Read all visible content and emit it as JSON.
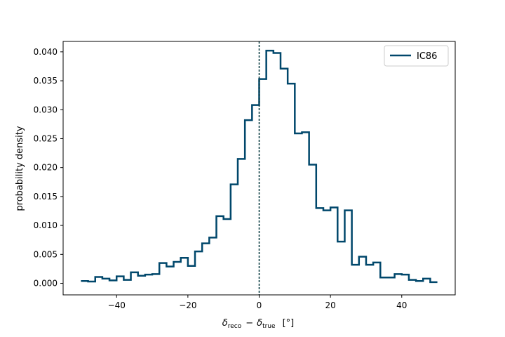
{
  "chart_data": {
    "type": "line",
    "style": "step-histogram",
    "xlabel": "δ_reco − δ_true",
    "xlabel_parts": {
      "symbol": "δ",
      "sub1": "reco",
      "minus": "−",
      "sub2": "true",
      "unit": "[°]"
    },
    "ylabel": "probability density",
    "xlim": [
      -55,
      55
    ],
    "ylim": [
      -0.002,
      0.0418
    ],
    "xticks": [
      -40,
      -20,
      0,
      20,
      40
    ],
    "xtick_labels": [
      "−40",
      "−20",
      "0",
      "20",
      "40"
    ],
    "yticks": [
      0.0,
      0.005,
      0.01,
      0.015,
      0.02,
      0.025,
      0.03,
      0.035,
      0.04
    ],
    "ytick_labels": [
      "0.000",
      "0.005",
      "0.010",
      "0.015",
      "0.020",
      "0.025",
      "0.030",
      "0.035",
      "0.040"
    ],
    "vline_x": 0,
    "legend_position": "top-right",
    "grid": false,
    "series": [
      {
        "name": "IC86",
        "color": "#00476b",
        "bin_edges": [
          -50,
          -48,
          -46,
          -44,
          -42,
          -40,
          -38,
          -36,
          -34,
          -32,
          -30,
          -28,
          -26,
          -24,
          -22,
          -20,
          -18,
          -16,
          -14,
          -12,
          -10,
          -8,
          -6,
          -4,
          -2,
          0,
          2,
          4,
          6,
          8,
          10,
          12,
          14,
          16,
          18,
          20,
          22,
          24,
          26,
          28,
          30,
          32,
          34,
          36,
          38,
          40,
          42,
          44,
          46,
          48,
          50
        ],
        "values": [
          0.0004,
          0.0003,
          0.0011,
          0.0008,
          0.0005,
          0.0012,
          0.0006,
          0.0019,
          0.0013,
          0.0015,
          0.0016,
          0.0035,
          0.0029,
          0.0037,
          0.0044,
          0.003,
          0.0055,
          0.0069,
          0.0079,
          0.0116,
          0.0111,
          0.0171,
          0.0215,
          0.0282,
          0.0308,
          0.0353,
          0.0402,
          0.0398,
          0.0371,
          0.0345,
          0.0259,
          0.0261,
          0.0205,
          0.013,
          0.0126,
          0.0131,
          0.0072,
          0.0126,
          0.0032,
          0.0046,
          0.0032,
          0.0036,
          0.001,
          0.001,
          0.0016,
          0.0015,
          0.0006,
          0.0004,
          0.0008,
          0.0002
        ]
      }
    ]
  }
}
